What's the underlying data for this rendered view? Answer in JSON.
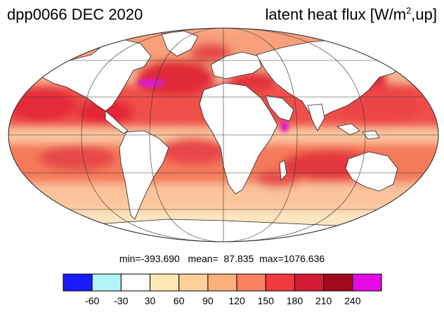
{
  "header": {
    "run_date": "dpp0066 DEC 2020",
    "variable": "latent heat flux [W/m",
    "variable_sup": "2",
    "variable_end": ",up]"
  },
  "stats": {
    "min_label": "min=",
    "min": "-393.690",
    "mean_label": "mean=",
    "mean": "87.835",
    "max_label": "max=",
    "max": "1076.636"
  },
  "colorbar": {
    "levels": [
      "-60",
      "-30",
      "30",
      "60",
      "90",
      "120",
      "150",
      "180",
      "210",
      "240"
    ],
    "colors": [
      "#1a1aff",
      "#b3f5f7",
      "#ffffff",
      "#fde8b3",
      "#fdd09a",
      "#fcb07a",
      "#f98262",
      "#f03a3f",
      "#d51a33",
      "#a30a20",
      "#e60ae6"
    ]
  },
  "map": {
    "projection": "mollweide",
    "ocean_base": "#f3a88a",
    "land_color": "#ffffff",
    "coast_color": "#222222",
    "grid_color": "#333333"
  }
}
